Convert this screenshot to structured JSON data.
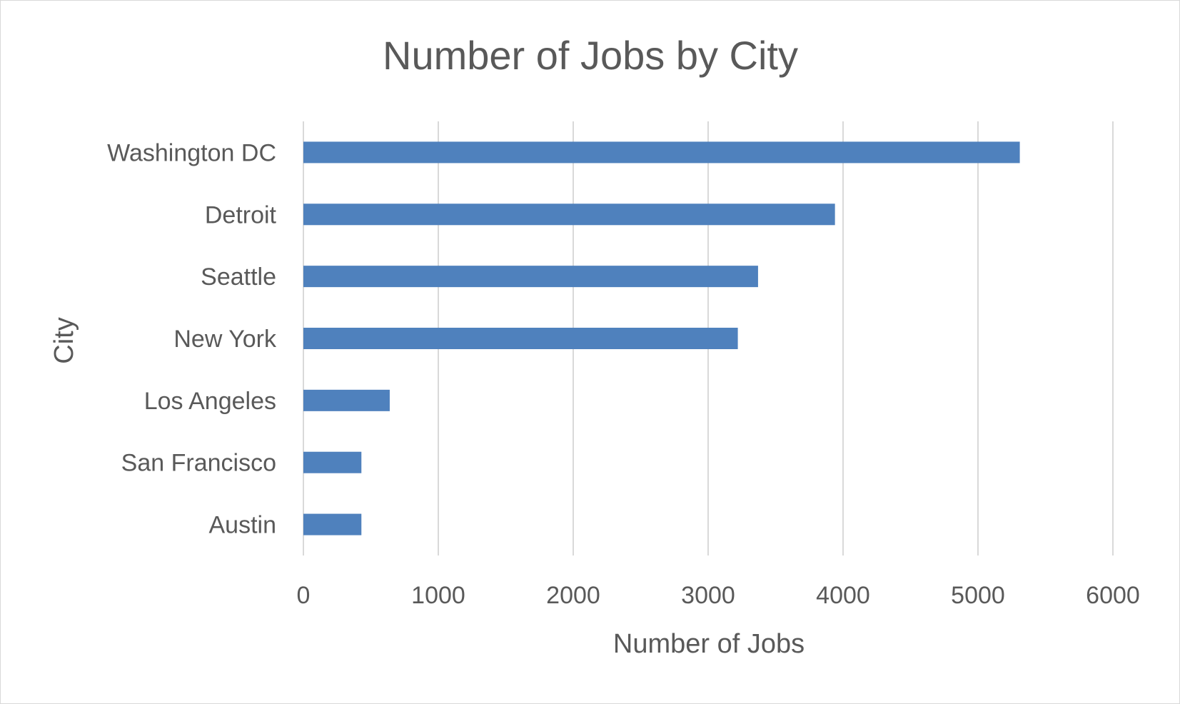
{
  "chart_data": {
    "type": "bar",
    "orientation": "horizontal",
    "title": "Number of Jobs by City",
    "xlabel": "Number of Jobs",
    "ylabel": "City",
    "categories": [
      "Washington DC",
      "Detroit",
      "Seattle",
      "New York",
      "Los Angeles",
      "San Francisco",
      "Austin"
    ],
    "values": [
      5310,
      3940,
      3370,
      3220,
      640,
      430,
      430
    ],
    "xlim": [
      0,
      6000
    ],
    "x_ticks": [
      "0",
      "1000",
      "2000",
      "3000",
      "4000",
      "5000",
      "6000"
    ],
    "x_tick_values": [
      0,
      1000,
      2000,
      3000,
      4000,
      5000,
      6000
    ],
    "grid": true,
    "legend": "none",
    "bar_color": "#4f81bd"
  }
}
